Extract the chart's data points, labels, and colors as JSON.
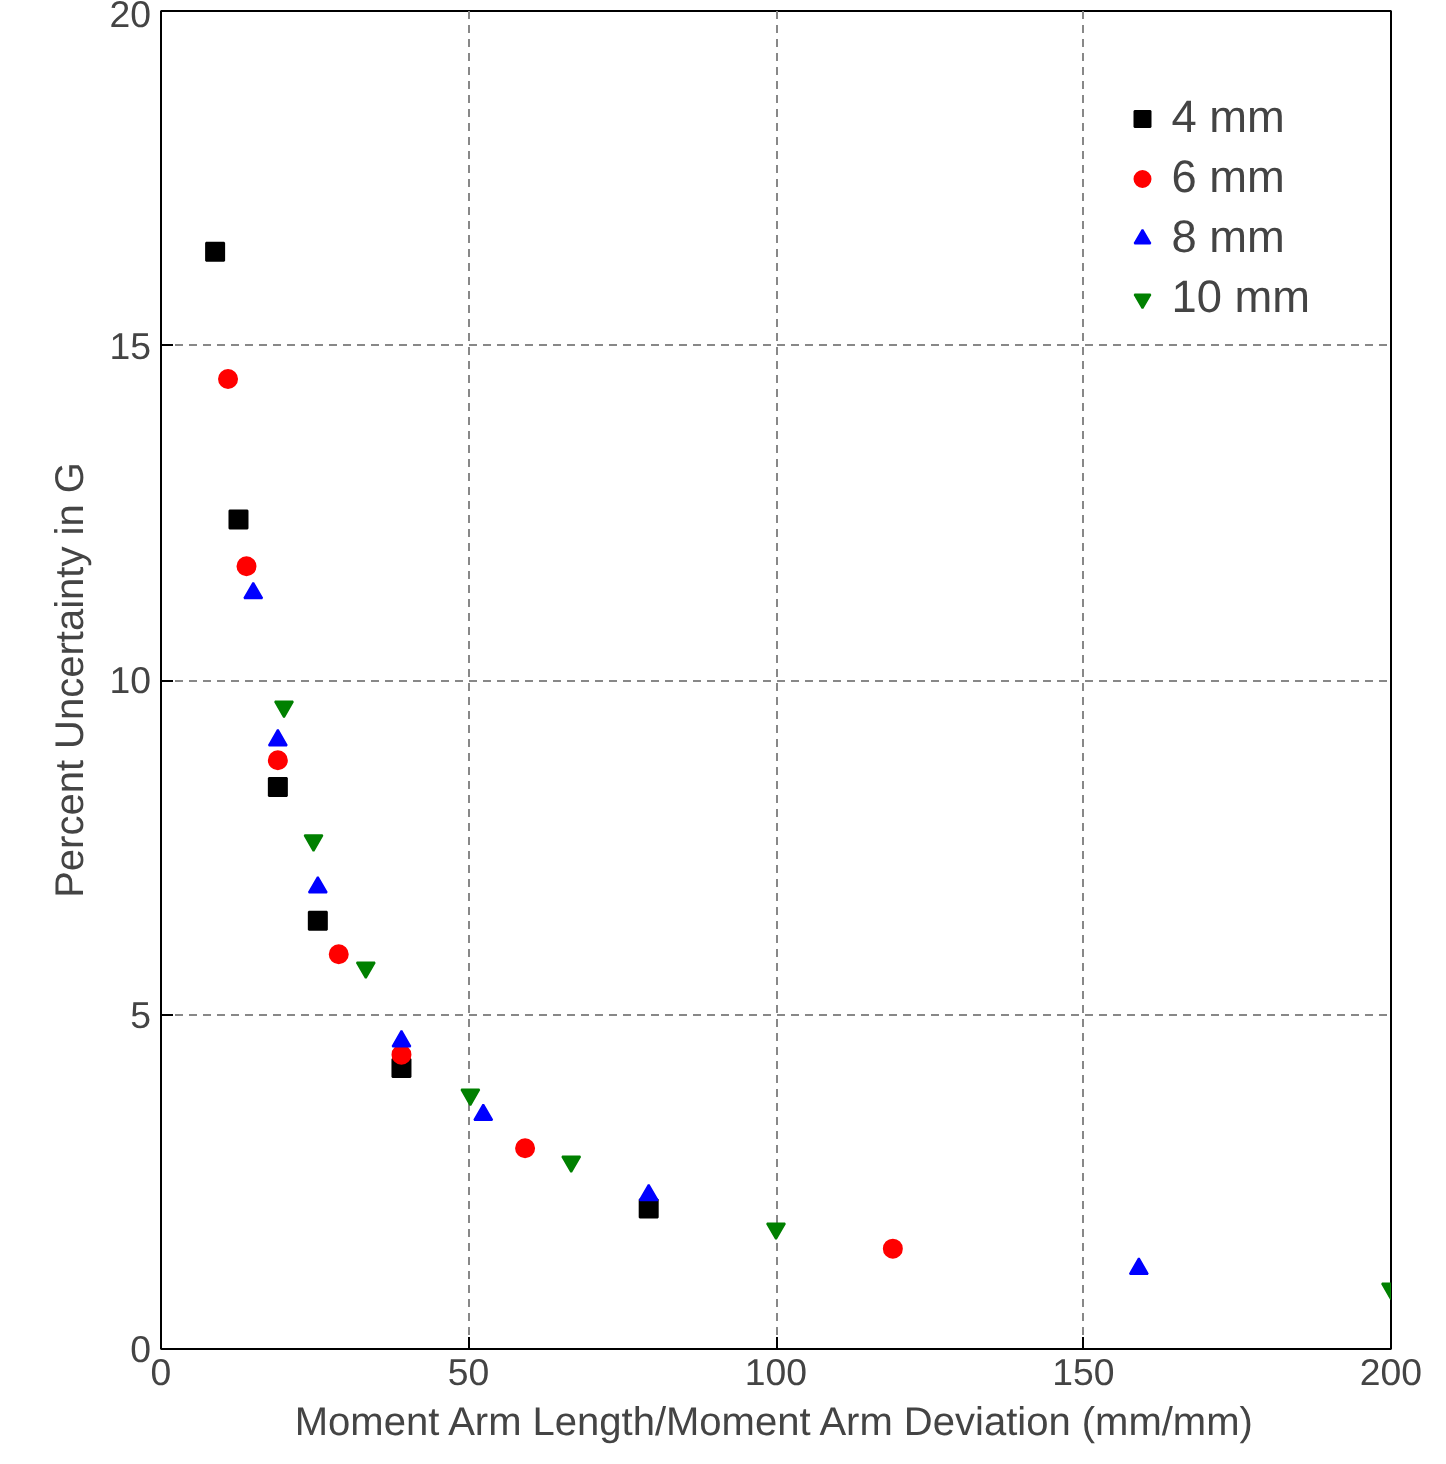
{
  "chart_data": {
    "type": "scatter",
    "xlabel": "Moment Arm Length/Moment Arm Deviation (mm/mm)",
    "ylabel": "Percent Uncertainty in G",
    "xlim": [
      0,
      200
    ],
    "xticks": [
      0,
      50,
      100,
      150,
      200
    ],
    "ylim": [
      0,
      20
    ],
    "yticks": [
      0,
      5,
      10,
      15,
      20
    ],
    "grid": true,
    "legend": "top right",
    "series": [
      {
        "name": "4 mm",
        "color": "#000000",
        "marker": "square",
        "x": [
          8.8,
          12.6,
          19.0,
          25.5,
          39.1,
          79.3
        ],
        "values": [
          16.4,
          12.4,
          8.4,
          6.4,
          4.2,
          2.1
        ]
      },
      {
        "name": "6 mm",
        "color": "#ff0000",
        "marker": "circle",
        "x": [
          10.9,
          13.9,
          19.0,
          28.9,
          39.1,
          59.2,
          119
        ],
        "values": [
          14.5,
          11.7,
          8.8,
          5.9,
          4.4,
          3.0,
          1.5
        ]
      },
      {
        "name": "8 mm",
        "color": "#0000ff",
        "marker": "triangle",
        "x": [
          15,
          19,
          25.5,
          39.1,
          52.4,
          79.3,
          159
        ],
        "values": [
          11.3,
          9.1,
          6.9,
          4.6,
          3.5,
          2.3,
          1.2
        ]
      },
      {
        "name": "10 mm",
        "color": "#008000",
        "x": [
          20,
          24.8,
          33.3,
          50.3,
          66.7,
          100,
          200
        ],
        "values": [
          9.6,
          7.6,
          5.7,
          3.8,
          2.8,
          1.8,
          0.9
        ]
      }
    ]
  }
}
